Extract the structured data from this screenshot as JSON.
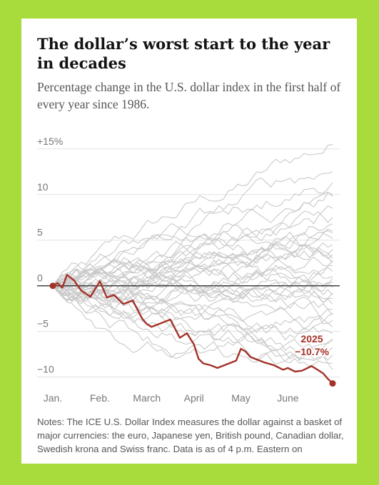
{
  "title": "The dollar’s worst start to the year in decades",
  "subtitle": "Percentage change in the U.S. dollar index in the first half of every year since 1986.",
  "notes": "Notes: The ICE U.S. Dollar Index measures the dollar against a basket of major currencies: the euro, Japanese yen, British pound, Canadian dollar, Swedish krona and Swiss franc. Data is as of 4 p.m. Eastern on",
  "colors": {
    "background": "#a8dc3c",
    "highlight": "#a33228",
    "other_years": "#c9c9c9"
  },
  "chart_data": {
    "type": "line",
    "title": "The dollar’s worst start to the year in decades",
    "subtitle": "Percentage change in the U.S. dollar index in the first half of every year since 1986.",
    "xlabel": "",
    "ylabel": "",
    "x_ticks": [
      "Jan.",
      "Feb.",
      "March",
      "April",
      "May",
      "June"
    ],
    "y_ticks": [
      {
        "value": 15,
        "label": "+15%"
      },
      {
        "value": 10,
        "label": "10"
      },
      {
        "value": 5,
        "label": "5"
      },
      {
        "value": 0,
        "label": "0"
      },
      {
        "value": -5,
        "label": "−5"
      },
      {
        "value": -10,
        "label": "−10"
      }
    ],
    "xlim": [
      1,
      6.95
    ],
    "ylim": [
      -11.2,
      16
    ],
    "grid": true,
    "highlight": {
      "name": "2025",
      "label": "2025",
      "value_label": "−10.7%",
      "color": "#a33228",
      "x": [
        1.0,
        1.1,
        1.2,
        1.3,
        1.45,
        1.6,
        1.8,
        2.0,
        2.15,
        2.3,
        2.5,
        2.7,
        2.9,
        3.0,
        3.1,
        3.2,
        3.35,
        3.5,
        3.7,
        3.85,
        4.0,
        4.1,
        4.2,
        4.35,
        4.5,
        4.7,
        4.9,
        5.0,
        5.1,
        5.2,
        5.35,
        5.5,
        5.7,
        5.9,
        6.0,
        6.15,
        6.3,
        6.5,
        6.6,
        6.75,
        6.85,
        6.95
      ],
      "y": [
        0.0,
        0.3,
        -0.2,
        1.2,
        0.6,
        -0.5,
        -1.2,
        0.5,
        -1.3,
        -1.0,
        -2.0,
        -1.6,
        -3.6,
        -4.2,
        -4.5,
        -4.3,
        -4.0,
        -3.7,
        -5.7,
        -5.2,
        -6.4,
        -8.0,
        -8.5,
        -8.7,
        -9.0,
        -8.6,
        -8.2,
        -6.9,
        -7.2,
        -7.8,
        -8.1,
        -8.4,
        -8.7,
        -9.2,
        -9.0,
        -9.4,
        -9.3,
        -8.8,
        -9.1,
        -9.6,
        -10.2,
        -10.7
      ]
    },
    "other_years": [
      {
        "end": 15.5
      },
      {
        "end": 11.3
      },
      {
        "end": 10.0
      },
      {
        "end": 9.8
      },
      {
        "end": 8.5
      },
      {
        "end": 7.5
      },
      {
        "end": 6.8
      },
      {
        "end": 6.0
      },
      {
        "end": 5.2
      },
      {
        "end": 4.5
      },
      {
        "end": 4.0
      },
      {
        "end": 3.4
      },
      {
        "end": 2.8
      },
      {
        "end": 2.2
      },
      {
        "end": 1.6
      },
      {
        "end": 1.0
      },
      {
        "end": 0.4
      },
      {
        "end": -0.2
      },
      {
        "end": -0.8
      },
      {
        "end": -1.4
      },
      {
        "end": -2.0
      },
      {
        "end": -2.6
      },
      {
        "end": -3.2
      },
      {
        "end": -3.8
      },
      {
        "end": -4.5
      },
      {
        "end": -5.2
      },
      {
        "end": -6.0
      },
      {
        "end": -6.8
      },
      {
        "end": -7.6
      },
      {
        "end": -8.5
      },
      {
        "end": -9.2
      },
      {
        "end": 12.5
      },
      {
        "end": 3.0
      },
      {
        "end": -1.0
      },
      {
        "end": 5.8
      },
      {
        "end": -3.0
      },
      {
        "end": 0.8
      },
      {
        "end": 2.5
      },
      {
        "end": -5.8
      }
    ]
  }
}
